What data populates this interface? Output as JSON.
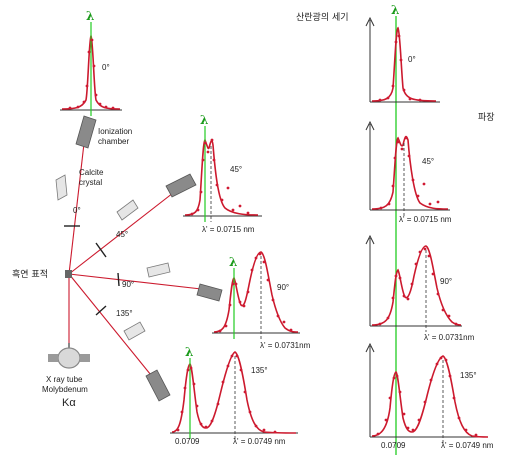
{
  "lambda_symbol": "λ",
  "apparatus": {
    "source_line1": "X ray tube",
    "source_line2": "Molybdenum",
    "source_line3": "Kα",
    "crystal_line1": "Calcite",
    "crystal_line2": "crystal",
    "chamber_line1": "Ionization",
    "chamber_line2": "chamber",
    "target_label": "흑연 표적",
    "angles": [
      "0°",
      "45°",
      "90°",
      "135°"
    ]
  },
  "spectra": {
    "s0": {
      "angle": "0°"
    },
    "s45": {
      "angle": "45°",
      "shift_label": "λ' = 0.0715 nm"
    },
    "s90": {
      "angle": "90°",
      "shift_label": "λ' = 0.0731nm"
    },
    "s135": {
      "angle": "135°",
      "ref_label": "0.0709",
      "shift_label": "λ' = 0.0749 nm"
    }
  },
  "right_panel": {
    "y_axis_label": "산란광의 세기",
    "x_axis_label": "파장",
    "angles": [
      "0°",
      "45°",
      "90°",
      "135°"
    ],
    "shift_labels": [
      "λ' = 0.0715 nm",
      "λ' = 0.0731nm",
      "λ' = 0.0749 nm"
    ],
    "ref_label": "0.0709"
  },
  "colors": {
    "curve": "#cc1a2e",
    "points": "#d01a33",
    "lambda_line": "#22cc22",
    "beam": "#cc1a2e",
    "device": "#8a8a8a"
  }
}
